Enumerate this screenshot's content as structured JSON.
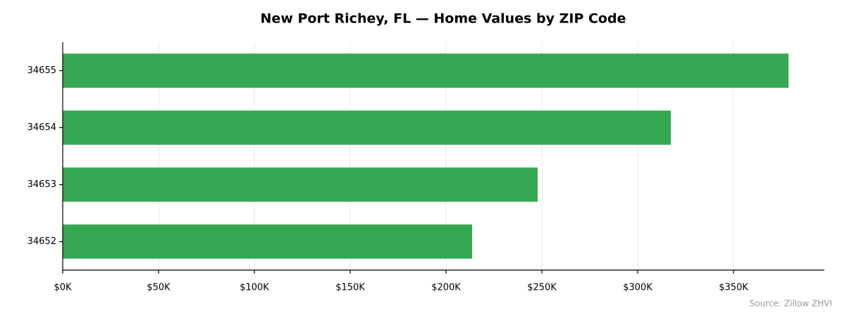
{
  "chart_data": {
    "type": "bar",
    "orientation": "horizontal",
    "title": "New Port Richey, FL — Home Values by ZIP Code",
    "categories": [
      "34652",
      "34653",
      "34654",
      "34655"
    ],
    "values": [
      213600,
      247800,
      317300,
      378700
    ],
    "color": "#34a853",
    "xlim": [
      0,
      397400
    ],
    "xticks": [
      {
        "value": 0,
        "label": "$0K"
      },
      {
        "value": 50000,
        "label": "$50K"
      },
      {
        "value": 100000,
        "label": "$100K"
      },
      {
        "value": 150000,
        "label": "$150K"
      },
      {
        "value": 200000,
        "label": "$200K"
      },
      {
        "value": 250000,
        "label": "$250K"
      },
      {
        "value": 300000,
        "label": "$300K"
      },
      {
        "value": 350000,
        "label": "$350K"
      }
    ],
    "grid": true,
    "source": "Source: Zillow ZHVI"
  }
}
